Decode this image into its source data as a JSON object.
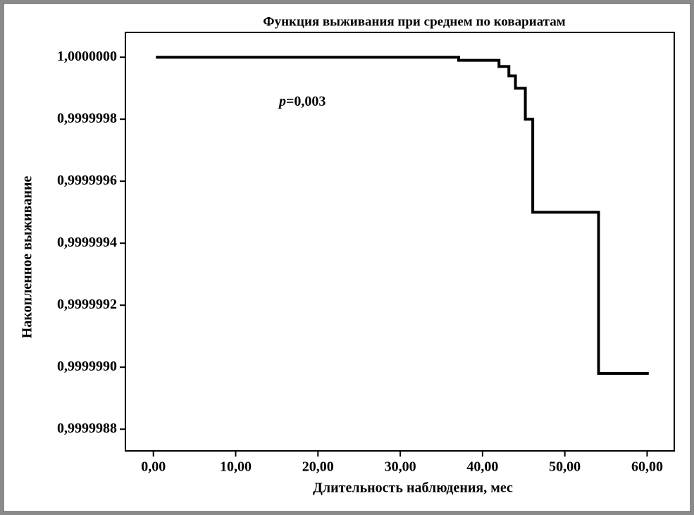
{
  "chart_data": {
    "type": "step",
    "title": "Функция выживания при среднем по ковариатам",
    "xlabel": "Длительность наблюдения, мес",
    "ylabel": "Накопленное выживание",
    "annotation": {
      "variable": "p",
      "text": "=0,003"
    },
    "x": [
      0.3,
      37.1,
      42.0,
      43.2,
      44.0,
      45.2,
      46.1,
      54.1,
      60.2
    ],
    "values": [
      1.0,
      0.99999999,
      0.99999997,
      0.99999994,
      0.9999999,
      0.9999998,
      0.9999995,
      0.99999898,
      0.99999898
    ],
    "color": "#000000",
    "xlim": [
      -3.4,
      63.3
    ],
    "ylim": [
      0.99999873,
      1.00000008
    ],
    "xticks": [
      {
        "value": 0,
        "label": "0,00"
      },
      {
        "value": 10,
        "label": "10,00"
      },
      {
        "value": 20,
        "label": "20,00"
      },
      {
        "value": 30,
        "label": "30,00"
      },
      {
        "value": 40,
        "label": "40,00"
      },
      {
        "value": 50,
        "label": "50,00"
      },
      {
        "value": 60,
        "label": "60,00"
      }
    ],
    "yticks": [
      {
        "value": 1.0,
        "label": "1,0000000"
      },
      {
        "value": 0.9999998,
        "label": "0,9999998"
      },
      {
        "value": 0.9999996,
        "label": "0,9999996"
      },
      {
        "value": 0.9999994,
        "label": "0,9999994"
      },
      {
        "value": 0.9999992,
        "label": "0,9999992"
      },
      {
        "value": 0.999999,
        "label": "0,9999990"
      },
      {
        "value": 0.9999988,
        "label": "0,9999988"
      }
    ],
    "grid": false
  }
}
